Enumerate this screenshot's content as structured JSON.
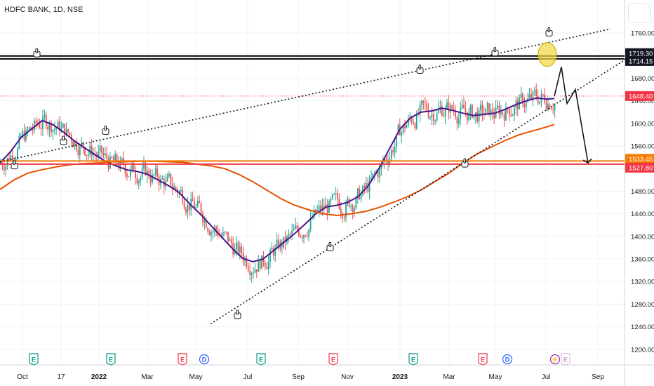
{
  "header": {
    "symbol": "HDFC BANK, 1D, NSE"
  },
  "chart_data": {
    "type": "candlestick",
    "title": "HDFC BANK, 1D, NSE",
    "x_tick_labels": [
      "Oct",
      "17",
      "2022",
      "Mar",
      "May",
      "Jul",
      "Sep",
      "Nov",
      "2023",
      "Mar",
      "May",
      "Jul",
      "Sep"
    ],
    "y_tick_labels": [
      "1760.00",
      "1720.00",
      "1680.00",
      "1640.00",
      "1600.00",
      "1560.00",
      "1520.00",
      "1480.00",
      "1440.00",
      "1400.00",
      "1360.00",
      "1320.00",
      "1280.00",
      "1240.00",
      "1200.00"
    ],
    "ylim": [
      1190,
      1775
    ],
    "price_labels": [
      {
        "value": 1719.3,
        "text": "1719.30",
        "color": "#131722"
      },
      {
        "value": 1714.15,
        "text": "1714.15",
        "color": "#131722"
      },
      {
        "value": 1648.4,
        "text": "1648.40",
        "color": "#f23645"
      },
      {
        "value": 1533.45,
        "text": "1533.45",
        "color": "#f57c00"
      },
      {
        "value": 1527.8,
        "text": "1527.80",
        "color": "#f23645"
      }
    ],
    "horizontal_levels": [
      {
        "value": 1719.3,
        "color": "#000000"
      },
      {
        "value": 1714.15,
        "color": "#000000"
      },
      {
        "value": 1533.45,
        "color": "#f57c00"
      },
      {
        "value": 1527.8,
        "color": "#f23645"
      }
    ],
    "last_price": 1648.4,
    "series": [
      {
        "name": "moving-average-short",
        "color": "#4a148c",
        "points": [
          [
            0,
            1530
          ],
          [
            15,
            1550
          ],
          [
            30,
            1575
          ],
          [
            45,
            1590
          ],
          [
            60,
            1605
          ],
          [
            75,
            1598
          ],
          [
            90,
            1585
          ],
          [
            105,
            1570
          ],
          [
            120,
            1557
          ],
          [
            135,
            1545
          ],
          [
            150,
            1533
          ],
          [
            165,
            1525
          ],
          [
            180,
            1518
          ],
          [
            195,
            1515
          ],
          [
            210,
            1510
          ],
          [
            225,
            1500
          ],
          [
            240,
            1490
          ],
          [
            255,
            1478
          ],
          [
            270,
            1458
          ],
          [
            285,
            1440
          ],
          [
            300,
            1420
          ],
          [
            315,
            1400
          ],
          [
            330,
            1380
          ],
          [
            345,
            1362
          ],
          [
            360,
            1355
          ],
          [
            375,
            1360
          ],
          [
            390,
            1375
          ],
          [
            405,
            1390
          ],
          [
            420,
            1405
          ],
          [
            435,
            1422
          ],
          [
            450,
            1440
          ],
          [
            465,
            1452
          ],
          [
            480,
            1455
          ],
          [
            495,
            1460
          ],
          [
            510,
            1470
          ],
          [
            525,
            1490
          ],
          [
            540,
            1520
          ],
          [
            555,
            1555
          ],
          [
            570,
            1590
          ],
          [
            585,
            1610
          ],
          [
            600,
            1620
          ],
          [
            615,
            1622
          ],
          [
            630,
            1627
          ],
          [
            645,
            1623
          ],
          [
            660,
            1618
          ],
          [
            675,
            1614
          ],
          [
            690,
            1616
          ],
          [
            705,
            1618
          ],
          [
            720,
            1625
          ],
          [
            735,
            1633
          ],
          [
            750,
            1640
          ],
          [
            765,
            1645
          ],
          [
            780,
            1643
          ],
          [
            790,
            1644
          ]
        ]
      },
      {
        "name": "moving-average-long",
        "color": "#e65100",
        "points": [
          [
            0,
            1483
          ],
          [
            20,
            1500
          ],
          [
            40,
            1512
          ],
          [
            60,
            1518
          ],
          [
            80,
            1523
          ],
          [
            100,
            1527
          ],
          [
            120,
            1529
          ],
          [
            140,
            1530
          ],
          [
            160,
            1532
          ],
          [
            180,
            1532
          ],
          [
            200,
            1533
          ],
          [
            220,
            1533
          ],
          [
            240,
            1532
          ],
          [
            260,
            1531
          ],
          [
            280,
            1528
          ],
          [
            300,
            1525
          ],
          [
            320,
            1520
          ],
          [
            340,
            1510
          ],
          [
            360,
            1497
          ],
          [
            380,
            1482
          ],
          [
            400,
            1467
          ],
          [
            420,
            1455
          ],
          [
            440,
            1447
          ],
          [
            460,
            1440
          ],
          [
            480,
            1437
          ],
          [
            500,
            1440
          ],
          [
            520,
            1444
          ],
          [
            540,
            1451
          ],
          [
            560,
            1460
          ],
          [
            580,
            1470
          ],
          [
            600,
            1482
          ],
          [
            620,
            1497
          ],
          [
            640,
            1512
          ],
          [
            660,
            1530
          ],
          [
            680,
            1546
          ],
          [
            700,
            1558
          ],
          [
            720,
            1570
          ],
          [
            740,
            1580
          ],
          [
            760,
            1587
          ],
          [
            780,
            1594
          ],
          [
            790,
            1598
          ]
        ]
      }
    ],
    "trendlines": [
      {
        "name": "upper-channel-line",
        "from": [
          0,
          1532
        ],
        "to": [
          870,
          1767
        ],
        "style": "dotted"
      },
      {
        "name": "lower-support-line",
        "from": [
          300,
          1245
        ],
        "to": [
          900,
          1720
        ],
        "style": "dotted"
      }
    ],
    "projection_path": [
      [
        790,
        1648
      ],
      [
        800,
        1700
      ],
      [
        808,
        1635
      ],
      [
        820,
        1660
      ],
      [
        838,
        1530
      ]
    ],
    "annotations": [
      {
        "type": "hand-pointer",
        "at": [
          52,
          1725
        ]
      },
      {
        "type": "hand-pointer",
        "at": [
          20,
          1527
        ]
      },
      {
        "type": "hand-pointer",
        "at": [
          90,
          1570
        ]
      },
      {
        "type": "hand-pointer",
        "at": [
          150,
          1588
        ]
      },
      {
        "type": "hand-pointer",
        "at": [
          338,
          1262
        ]
      },
      {
        "type": "hand-pointer",
        "at": [
          470,
          1382
        ]
      },
      {
        "type": "hand-pointer",
        "at": [
          598,
          1696
        ]
      },
      {
        "type": "hand-pointer",
        "at": [
          662,
          1530
        ]
      },
      {
        "type": "hand-pointer",
        "at": [
          705,
          1727
        ]
      },
      {
        "type": "hand-pointer",
        "at": [
          782,
          1762
        ]
      },
      {
        "type": "circle-highlight",
        "at": [
          780,
          1722
        ]
      }
    ],
    "events": [
      {
        "x": 48,
        "letter": "E",
        "kind": "earnings"
      },
      {
        "x": 158,
        "letter": "E",
        "kind": "earnings"
      },
      {
        "x": 260,
        "letter": "E",
        "kind": "earnings-negative"
      },
      {
        "x": 291,
        "letter": "D",
        "kind": "dividend"
      },
      {
        "x": 372,
        "letter": "E",
        "kind": "earnings"
      },
      {
        "x": 475,
        "letter": "E",
        "kind": "earnings-negative"
      },
      {
        "x": 589,
        "letter": "E",
        "kind": "earnings"
      },
      {
        "x": 688,
        "letter": "E",
        "kind": "earnings-negative"
      },
      {
        "x": 723,
        "letter": "D",
        "kind": "dividend"
      },
      {
        "x": 791,
        "letter": "⚡",
        "kind": "split"
      },
      {
        "x": 806,
        "letter": "E",
        "kind": "earnings-upcoming"
      }
    ],
    "colors": {
      "up": "#26a69a",
      "down": "#ef5350",
      "grid": "#f0f3fa",
      "axis_text": "#131722",
      "highlight": "#f5d742"
    }
  }
}
